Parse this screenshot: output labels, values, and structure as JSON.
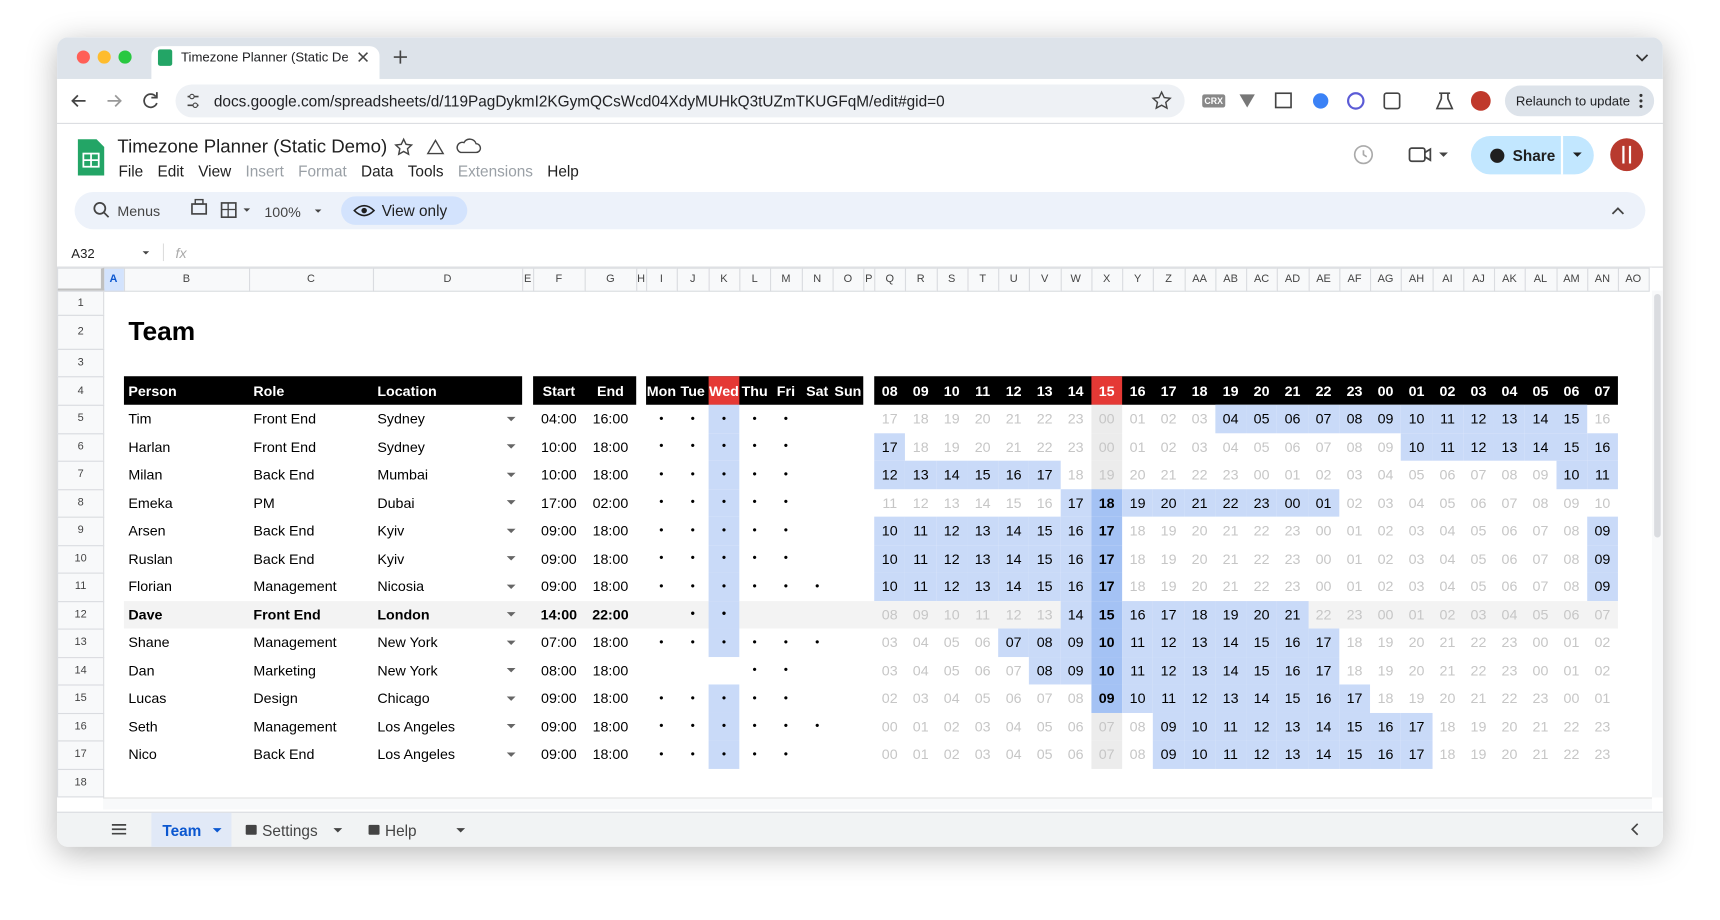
{
  "browser": {
    "tab_title": "Timezone Planner (Static De",
    "url": "docs.google.com/spreadsheets/d/119PagDykmI2KGymQCsWcd04XdyMUHkQ3tUZmTKUGFqM/edit#gid=0",
    "crx": "CRX",
    "relaunch": "Relaunch to update"
  },
  "doc": {
    "title": "Timezone Planner (Static Demo)",
    "menus": [
      {
        "label": "File",
        "enabled": true
      },
      {
        "label": "Edit",
        "enabled": true
      },
      {
        "label": "View",
        "enabled": true
      },
      {
        "label": "Insert",
        "enabled": false
      },
      {
        "label": "Format",
        "enabled": false
      },
      {
        "label": "Data",
        "enabled": true
      },
      {
        "label": "Tools",
        "enabled": true
      },
      {
        "label": "Extensions",
        "enabled": false
      },
      {
        "label": "Help",
        "enabled": true
      }
    ],
    "search": "Menus",
    "zoom": "100%",
    "view_only": "View only",
    "share": "Share",
    "name_box": "A32",
    "fx": "fx"
  },
  "grid": {
    "columns": [
      "A",
      "B",
      "C",
      "D",
      "E",
      "F",
      "G",
      "H",
      "I",
      "J",
      "K",
      "L",
      "M",
      "N",
      "O",
      "P",
      "Q",
      "R",
      "S",
      "T",
      "U",
      "V",
      "W",
      "X",
      "Y",
      "Z",
      "AA",
      "AB",
      "AC",
      "AD",
      "AE",
      "AF",
      "AG",
      "AH",
      "AI",
      "AJ",
      "AK",
      "AL",
      "AM",
      "AN",
      "AO"
    ],
    "selected_column": "A",
    "rows": [
      1,
      2,
      3,
      4,
      5,
      6,
      7,
      8,
      9,
      10,
      11,
      12,
      13,
      14,
      15,
      16,
      17,
      18
    ]
  },
  "sheet": {
    "title": "Team",
    "headers": {
      "person": "Person",
      "role": "Role",
      "location": "Location",
      "start": "Start",
      "end": "End"
    },
    "days": [
      "Mon",
      "Tue",
      "Wed",
      "Thu",
      "Fri",
      "Sat",
      "Sun"
    ],
    "today": "Wed",
    "hours": [
      "08",
      "09",
      "10",
      "11",
      "12",
      "13",
      "14",
      "15",
      "16",
      "17",
      "18",
      "19",
      "20",
      "21",
      "22",
      "23",
      "00",
      "01",
      "02",
      "03",
      "04",
      "05",
      "06",
      "07"
    ],
    "current_hour": "15",
    "people": [
      {
        "name": "Tim",
        "role": "Front End",
        "location": "Sydney",
        "start": "04:00",
        "end": "16:00",
        "days": [
          "•",
          "•",
          "•",
          "•",
          "•",
          null,
          null
        ],
        "hours": [
          "17",
          "18",
          "19",
          "20",
          "21",
          "22",
          "23",
          "00",
          "01",
          "02",
          "03",
          "04",
          "05",
          "06",
          "07",
          "08",
          "09",
          "10",
          "11",
          "12",
          "13",
          "14",
          "15",
          "16"
        ]
      },
      {
        "name": "Harlan",
        "role": "Front End",
        "location": "Sydney",
        "start": "10:00",
        "end": "18:00",
        "days": [
          "•",
          "•",
          "•",
          "•",
          "•",
          null,
          null
        ],
        "hours": [
          "17",
          "18",
          "19",
          "20",
          "21",
          "22",
          "23",
          "00",
          "01",
          "02",
          "03",
          "04",
          "05",
          "06",
          "07",
          "08",
          "09",
          "10",
          "11",
          "12",
          "13",
          "14",
          "15",
          "16"
        ]
      },
      {
        "name": "Milan",
        "role": "Back End",
        "location": "Mumbai",
        "start": "10:00",
        "end": "18:00",
        "days": [
          "•",
          "•",
          "•",
          "•",
          "•",
          null,
          null
        ],
        "hours": [
          "12",
          "13",
          "14",
          "15",
          "16",
          "17",
          "18",
          "19",
          "20",
          "21",
          "22",
          "23",
          "00",
          "01",
          "02",
          "03",
          "04",
          "05",
          "06",
          "07",
          "08",
          "09",
          "10",
          "11"
        ]
      },
      {
        "name": "Emeka",
        "role": "PM",
        "location": "Dubai",
        "start": "17:00",
        "end": "02:00",
        "days": [
          "•",
          "•",
          "•",
          "•",
          "•",
          null,
          null
        ],
        "hours": [
          "11",
          "12",
          "13",
          "14",
          "15",
          "16",
          "17",
          "18",
          "19",
          "20",
          "21",
          "22",
          "23",
          "00",
          "01",
          "02",
          "03",
          "04",
          "05",
          "06",
          "07",
          "08",
          "09",
          "10"
        ]
      },
      {
        "name": "Arsen",
        "role": "Back End",
        "location": "Kyiv",
        "start": "09:00",
        "end": "18:00",
        "days": [
          "•",
          "•",
          "•",
          "•",
          "•",
          null,
          null
        ],
        "hours": [
          "10",
          "11",
          "12",
          "13",
          "14",
          "15",
          "16",
          "17",
          "18",
          "19",
          "20",
          "21",
          "22",
          "23",
          "00",
          "01",
          "02",
          "03",
          "04",
          "05",
          "06",
          "07",
          "08",
          "09"
        ]
      },
      {
        "name": "Ruslan",
        "role": "Back End",
        "location": "Kyiv",
        "start": "09:00",
        "end": "18:00",
        "days": [
          "•",
          "•",
          "•",
          "•",
          "•",
          null,
          null
        ],
        "hours": [
          "10",
          "11",
          "12",
          "13",
          "14",
          "15",
          "16",
          "17",
          "18",
          "19",
          "20",
          "21",
          "22",
          "23",
          "00",
          "01",
          "02",
          "03",
          "04",
          "05",
          "06",
          "07",
          "08",
          "09"
        ]
      },
      {
        "name": "Florian",
        "role": "Management",
        "location": "Nicosia",
        "start": "09:00",
        "end": "18:00",
        "days": [
          "•",
          "•",
          "•",
          "•",
          "•",
          "•",
          null
        ],
        "hours": [
          "10",
          "11",
          "12",
          "13",
          "14",
          "15",
          "16",
          "17",
          "18",
          "19",
          "20",
          "21",
          "22",
          "23",
          "00",
          "01",
          "02",
          "03",
          "04",
          "05",
          "06",
          "07",
          "08",
          "09"
        ]
      },
      {
        "name": "Dave",
        "role": "Front End",
        "location": "London",
        "start": "14:00",
        "end": "22:00",
        "self": true,
        "days": [
          null,
          "•",
          "•",
          null,
          null,
          null,
          null
        ],
        "hours": [
          "08",
          "09",
          "10",
          "11",
          "12",
          "13",
          "14",
          "15",
          "16",
          "17",
          "18",
          "19",
          "20",
          "21",
          "22",
          "23",
          "00",
          "01",
          "02",
          "03",
          "04",
          "05",
          "06",
          "07"
        ]
      },
      {
        "name": "Shane",
        "role": "Management",
        "location": "New York",
        "start": "07:00",
        "end": "18:00",
        "days": [
          "•",
          "•",
          "•",
          "•",
          "•",
          "•",
          null
        ],
        "hours": [
          "03",
          "04",
          "05",
          "06",
          "07",
          "08",
          "09",
          "10",
          "11",
          "12",
          "13",
          "14",
          "15",
          "16",
          "17",
          "18",
          "19",
          "20",
          "21",
          "22",
          "23",
          "00",
          "01",
          "02"
        ]
      },
      {
        "name": "Dan",
        "role": "Marketing",
        "location": "New York",
        "start": "08:00",
        "end": "18:00",
        "days": [
          null,
          null,
          null,
          "•",
          "•",
          null,
          null
        ],
        "hours": [
          "03",
          "04",
          "05",
          "06",
          "07",
          "08",
          "09",
          "10",
          "11",
          "12",
          "13",
          "14",
          "15",
          "16",
          "17",
          "18",
          "19",
          "20",
          "21",
          "22",
          "23",
          "00",
          "01",
          "02"
        ]
      },
      {
        "name": "Lucas",
        "role": "Design",
        "location": "Chicago",
        "start": "09:00",
        "end": "18:00",
        "days": [
          "•",
          "•",
          "•",
          "•",
          "•",
          null,
          null
        ],
        "hours": [
          "02",
          "03",
          "04",
          "05",
          "06",
          "07",
          "08",
          "09",
          "10",
          "11",
          "12",
          "13",
          "14",
          "15",
          "16",
          "17",
          "18",
          "19",
          "20",
          "21",
          "22",
          "23",
          "00",
          "01"
        ]
      },
      {
        "name": "Seth",
        "role": "Management",
        "location": "Los Angeles",
        "start": "09:00",
        "end": "18:00",
        "days": [
          "•",
          "•",
          "•",
          "•",
          "•",
          "•",
          null
        ],
        "hours": [
          "00",
          "01",
          "02",
          "03",
          "04",
          "05",
          "06",
          "07",
          "08",
          "09",
          "10",
          "11",
          "12",
          "13",
          "14",
          "15",
          "16",
          "17",
          "18",
          "19",
          "20",
          "21",
          "22",
          "23"
        ]
      },
      {
        "name": "Nico",
        "role": "Back End",
        "location": "Los Angeles",
        "start": "09:00",
        "end": "18:00",
        "days": [
          "•",
          "•",
          "•",
          "•",
          "•",
          null,
          null
        ],
        "hours": [
          "00",
          "01",
          "02",
          "03",
          "04",
          "05",
          "06",
          "07",
          "08",
          "09",
          "10",
          "11",
          "12",
          "13",
          "14",
          "15",
          "16",
          "17",
          "18",
          "19",
          "20",
          "21",
          "22",
          "23"
        ]
      }
    ]
  },
  "tabs": [
    "Team",
    "Settings",
    "Help"
  ]
}
